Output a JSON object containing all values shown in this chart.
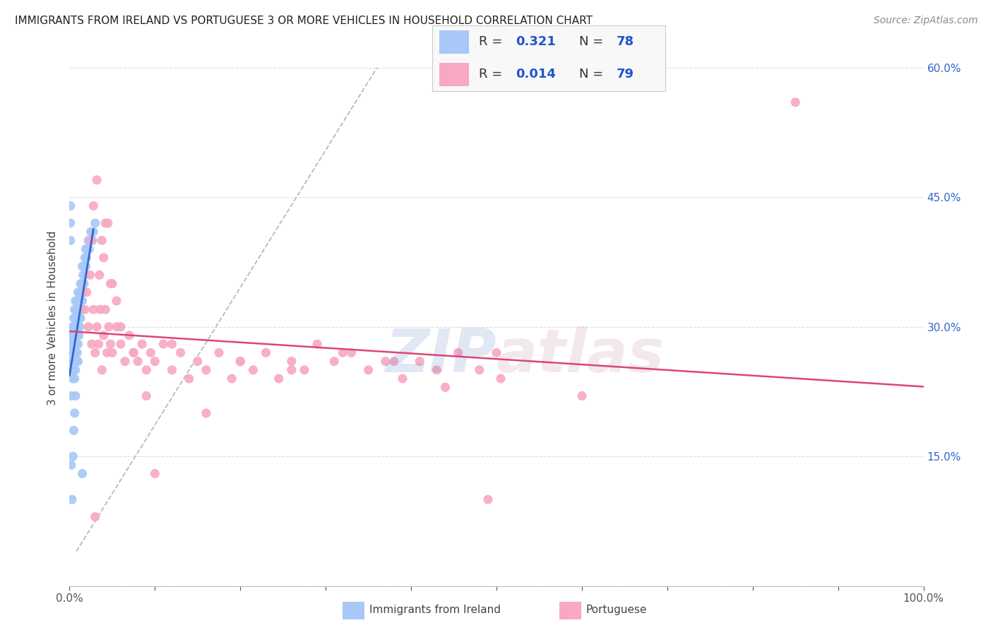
{
  "title": "IMMIGRANTS FROM IRELAND VS PORTUGUESE 3 OR MORE VEHICLES IN HOUSEHOLD CORRELATION CHART",
  "source": "Source: ZipAtlas.com",
  "ylabel": "3 or more Vehicles in Household",
  "ireland_R": 0.321,
  "ireland_N": 78,
  "portuguese_R": 0.014,
  "portuguese_N": 79,
  "ireland_color": "#a8c8f8",
  "portuguese_color": "#f8a8c0",
  "ireland_line_color": "#3366cc",
  "portuguese_line_color": "#dd4477",
  "diagonal_color": "#99aabb",
  "background_color": "#ffffff",
  "grid_color": "#dddddd",
  "xlim": [
    0,
    1.0
  ],
  "ylim": [
    0,
    0.62
  ],
  "x_ticks": [
    0.0,
    1.0
  ],
  "x_tick_labels": [
    "0.0%",
    "100.0%"
  ],
  "y_ticks": [
    0.0,
    0.15,
    0.3,
    0.45,
    0.6
  ],
  "y_tick_labels": [
    "",
    "15.0%",
    "30.0%",
    "45.0%",
    "60.0%"
  ],
  "legend_R1": "0.321",
  "legend_N1": "78",
  "legend_R2": "0.014",
  "legend_N2": "79",
  "watermark_zip": "ZIP",
  "watermark_atlas": "atlas",
  "scatter_ireland_x": [
    0.002,
    0.002,
    0.003,
    0.003,
    0.003,
    0.004,
    0.004,
    0.004,
    0.004,
    0.005,
    0.005,
    0.005,
    0.005,
    0.006,
    0.006,
    0.006,
    0.006,
    0.006,
    0.007,
    0.007,
    0.007,
    0.007,
    0.007,
    0.008,
    0.008,
    0.008,
    0.008,
    0.009,
    0.009,
    0.009,
    0.009,
    0.01,
    0.01,
    0.01,
    0.01,
    0.011,
    0.011,
    0.011,
    0.012,
    0.012,
    0.012,
    0.013,
    0.013,
    0.013,
    0.014,
    0.014,
    0.015,
    0.015,
    0.015,
    0.016,
    0.016,
    0.017,
    0.017,
    0.018,
    0.018,
    0.019,
    0.019,
    0.02,
    0.021,
    0.022,
    0.023,
    0.024,
    0.025,
    0.027,
    0.028,
    0.03,
    0.001,
    0.001,
    0.001,
    0.002,
    0.002,
    0.003,
    0.004,
    0.005,
    0.006,
    0.007,
    0.01,
    0.015
  ],
  "scatter_ireland_y": [
    0.26,
    0.28,
    0.25,
    0.27,
    0.29,
    0.24,
    0.26,
    0.28,
    0.3,
    0.25,
    0.27,
    0.29,
    0.31,
    0.24,
    0.26,
    0.28,
    0.3,
    0.32,
    0.25,
    0.27,
    0.29,
    0.31,
    0.33,
    0.26,
    0.28,
    0.3,
    0.32,
    0.27,
    0.29,
    0.31,
    0.33,
    0.28,
    0.3,
    0.32,
    0.34,
    0.29,
    0.31,
    0.33,
    0.3,
    0.32,
    0.34,
    0.31,
    0.33,
    0.35,
    0.32,
    0.34,
    0.33,
    0.35,
    0.37,
    0.34,
    0.36,
    0.35,
    0.37,
    0.36,
    0.38,
    0.37,
    0.39,
    0.38,
    0.39,
    0.4,
    0.39,
    0.4,
    0.41,
    0.4,
    0.41,
    0.42,
    0.44,
    0.42,
    0.4,
    0.22,
    0.14,
    0.1,
    0.15,
    0.18,
    0.2,
    0.22,
    0.26,
    0.13
  ],
  "scatter_portuguese_x": [
    0.018,
    0.02,
    0.022,
    0.024,
    0.026,
    0.028,
    0.03,
    0.032,
    0.034,
    0.036,
    0.038,
    0.04,
    0.042,
    0.044,
    0.046,
    0.048,
    0.05,
    0.055,
    0.06,
    0.065,
    0.07,
    0.075,
    0.08,
    0.085,
    0.09,
    0.095,
    0.1,
    0.11,
    0.12,
    0.13,
    0.14,
    0.15,
    0.16,
    0.175,
    0.19,
    0.2,
    0.215,
    0.23,
    0.245,
    0.26,
    0.275,
    0.29,
    0.31,
    0.33,
    0.35,
    0.37,
    0.39,
    0.41,
    0.43,
    0.455,
    0.48,
    0.505,
    0.025,
    0.035,
    0.04,
    0.045,
    0.05,
    0.055,
    0.028,
    0.032,
    0.038,
    0.042,
    0.048,
    0.06,
    0.075,
    0.09,
    0.12,
    0.16,
    0.2,
    0.26,
    0.32,
    0.38,
    0.44,
    0.5,
    0.6,
    0.85,
    0.1,
    0.49,
    0.03
  ],
  "scatter_portuguese_y": [
    0.32,
    0.34,
    0.3,
    0.36,
    0.28,
    0.32,
    0.27,
    0.3,
    0.28,
    0.32,
    0.25,
    0.29,
    0.32,
    0.27,
    0.3,
    0.28,
    0.27,
    0.3,
    0.28,
    0.26,
    0.29,
    0.27,
    0.26,
    0.28,
    0.25,
    0.27,
    0.26,
    0.28,
    0.25,
    0.27,
    0.24,
    0.26,
    0.25,
    0.27,
    0.24,
    0.26,
    0.25,
    0.27,
    0.24,
    0.26,
    0.25,
    0.28,
    0.26,
    0.27,
    0.25,
    0.26,
    0.24,
    0.26,
    0.25,
    0.27,
    0.25,
    0.24,
    0.4,
    0.36,
    0.38,
    0.42,
    0.35,
    0.33,
    0.44,
    0.47,
    0.4,
    0.42,
    0.35,
    0.3,
    0.27,
    0.22,
    0.28,
    0.2,
    0.26,
    0.25,
    0.27,
    0.26,
    0.23,
    0.27,
    0.22,
    0.56,
    0.13,
    0.1,
    0.08
  ]
}
